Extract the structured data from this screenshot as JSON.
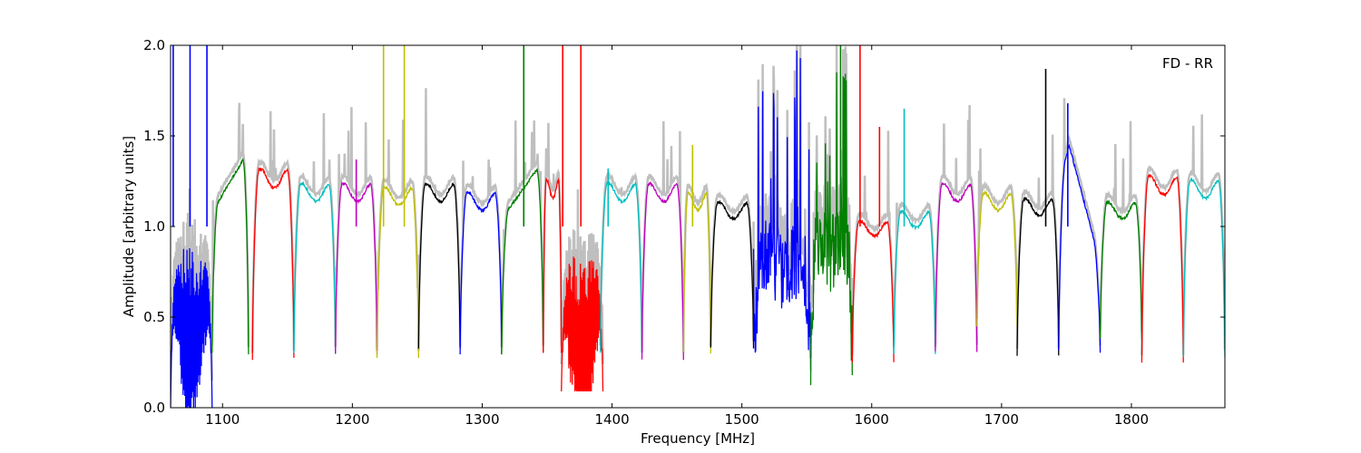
{
  "chart_data": {
    "type": "line",
    "title": "",
    "annotation": "FD - RR",
    "xlabel": "Frequency [MHz]",
    "ylabel": "Amplitude [arbitrary units]",
    "xlim": [
      1060,
      1872
    ],
    "ylim": [
      0.0,
      2.0
    ],
    "xticks": [
      1100,
      1200,
      1300,
      1400,
      1500,
      1600,
      1700,
      1800
    ],
    "xtick_labels": [
      "1100",
      "1200",
      "1300",
      "1400",
      "1500",
      "1600",
      "1700",
      "1800"
    ],
    "yticks": [
      0.0,
      0.5,
      1.0,
      1.5,
      2.0
    ],
    "ytick_labels": [
      "0.0",
      "0.5",
      "1.0",
      "1.5",
      "2.0"
    ],
    "grid": false,
    "legend": "none",
    "colors": {
      "background_trace": "#bfbfbf",
      "blue": "#0000ff",
      "green": "#008000",
      "red": "#ff0000",
      "cyan": "#00bfbf",
      "magenta": "#bf00bf",
      "yellow": "#bfbf00",
      "black": "#000000"
    },
    "series": [
      {
        "color": "blue",
        "start": 1060,
        "end": 1092,
        "level": 0.9,
        "shape": "noisy-dip",
        "min": 0.0
      },
      {
        "color": "green",
        "start": 1092,
        "end": 1120,
        "level": 1.35,
        "shape": "rise",
        "min": 0.3
      },
      {
        "color": "red",
        "start": 1123,
        "end": 1155,
        "level": 1.28,
        "shape": "band",
        "min": 0.27
      },
      {
        "color": "cyan",
        "start": 1155,
        "end": 1187,
        "level": 1.2,
        "shape": "band",
        "min": 0.3
      },
      {
        "color": "magenta",
        "start": 1187,
        "end": 1219,
        "level": 1.2,
        "shape": "band",
        "min": 0.3
      },
      {
        "color": "yellow",
        "start": 1219,
        "end": 1251,
        "level": 1.18,
        "shape": "band",
        "min": 0.28
      },
      {
        "color": "black",
        "start": 1251,
        "end": 1283,
        "level": 1.2,
        "shape": "band",
        "min": 0.33
      },
      {
        "color": "blue",
        "start": 1283,
        "end": 1315,
        "level": 1.15,
        "shape": "band",
        "min": 0.3
      },
      {
        "color": "green",
        "start": 1315,
        "end": 1347,
        "level": 1.3,
        "shape": "rise",
        "min": 0.3
      },
      {
        "color": "red",
        "start": 1347,
        "end": 1361,
        "level": 1.22,
        "shape": "band",
        "min": 0.3
      },
      {
        "color": "red",
        "start": 1361,
        "end": 1393,
        "level": 0.8,
        "shape": "noisy-dip",
        "min": 0.09
      },
      {
        "color": "cyan",
        "start": 1391,
        "end": 1423,
        "level": 1.2,
        "shape": "band",
        "min": 0.3
      },
      {
        "color": "magenta",
        "start": 1423,
        "end": 1455,
        "level": 1.2,
        "shape": "band",
        "min": 0.26
      },
      {
        "color": "yellow",
        "start": 1455,
        "end": 1476,
        "level": 1.15,
        "shape": "band",
        "min": 0.3
      },
      {
        "color": "black",
        "start": 1476,
        "end": 1509,
        "level": 1.1,
        "shape": "band",
        "min": 0.33
      },
      {
        "color": "blue",
        "start": 1509,
        "end": 1553,
        "level": 0.8,
        "shape": "noisy",
        "min": 0.18
      },
      {
        "color": "green",
        "start": 1553,
        "end": 1585,
        "level": 0.9,
        "shape": "noisy",
        "min": 0.16
      },
      {
        "color": "red",
        "start": 1585,
        "end": 1617,
        "level": 1.0,
        "shape": "band",
        "min": 0.25
      },
      {
        "color": "cyan",
        "start": 1617,
        "end": 1649,
        "level": 1.05,
        "shape": "band",
        "min": 0.3
      },
      {
        "color": "magenta",
        "start": 1649,
        "end": 1681,
        "level": 1.2,
        "shape": "band",
        "min": 0.31
      },
      {
        "color": "yellow",
        "start": 1681,
        "end": 1712,
        "level": 1.15,
        "shape": "band",
        "min": 0.45
      },
      {
        "color": "black",
        "start": 1712,
        "end": 1744,
        "level": 1.12,
        "shape": "band",
        "min": 0.29
      },
      {
        "color": "blue",
        "start": 1744,
        "end": 1776,
        "level": 1.45,
        "shape": "peak",
        "min": 0.31
      },
      {
        "color": "green",
        "start": 1776,
        "end": 1808,
        "level": 1.1,
        "shape": "band",
        "min": 0.38
      },
      {
        "color": "red",
        "start": 1808,
        "end": 1840,
        "level": 1.24,
        "shape": "band",
        "min": 0.25
      },
      {
        "color": "cyan",
        "start": 1840,
        "end": 1872,
        "level": 1.22,
        "shape": "band",
        "min": 0.28
      }
    ],
    "spikes": [
      {
        "x": 1062,
        "y": 2.0,
        "color": "blue"
      },
      {
        "x": 1075,
        "y": 2.0,
        "color": "blue"
      },
      {
        "x": 1088,
        "y": 2.0,
        "color": "blue"
      },
      {
        "x": 1203,
        "y": 1.37,
        "color": "magenta"
      },
      {
        "x": 1224,
        "y": 2.0,
        "color": "yellow"
      },
      {
        "x": 1240,
        "y": 2.0,
        "color": "yellow"
      },
      {
        "x": 1332,
        "y": 2.0,
        "color": "green"
      },
      {
        "x": 1362,
        "y": 2.0,
        "color": "red"
      },
      {
        "x": 1376,
        "y": 2.0,
        "color": "red"
      },
      {
        "x": 1397,
        "y": 1.32,
        "color": "cyan"
      },
      {
        "x": 1462,
        "y": 1.45,
        "color": "yellow"
      },
      {
        "x": 1576,
        "y": 2.0,
        "color": "green"
      },
      {
        "x": 1591,
        "y": 2.0,
        "color": "red"
      },
      {
        "x": 1606,
        "y": 1.55,
        "color": "red"
      },
      {
        "x": 1625,
        "y": 1.65,
        "color": "cyan"
      },
      {
        "x": 1734,
        "y": 1.87,
        "color": "black"
      },
      {
        "x": 1751,
        "y": 1.68,
        "color": "blue"
      }
    ]
  }
}
